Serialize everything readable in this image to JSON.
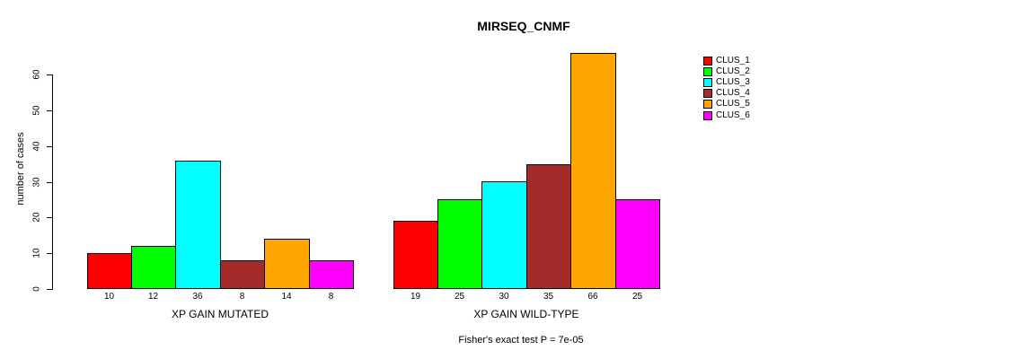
{
  "title": "MIRSEQ_CNMF",
  "chart_data": {
    "type": "bar",
    "title": "MIRSEQ_CNMF",
    "xlabel": "",
    "ylabel": "number of cases",
    "ylim": [
      0,
      60
    ],
    "yticks": [
      0,
      10,
      20,
      30,
      40,
      50,
      60
    ],
    "grid": false,
    "legend_position": "right",
    "background_color": "#ffffff",
    "bar_border_color": "#000000",
    "series_colors": [
      "#FF0000",
      "#00FF00",
      "#00FFFF",
      "#A52A2A",
      "#FFA500",
      "#FF00FF"
    ],
    "legend": [
      {
        "label": "CLUS_1",
        "color": "#FF0000"
      },
      {
        "label": "CLUS_2",
        "color": "#00FF00"
      },
      {
        "label": "CLUS_3",
        "color": "#00FFFF"
      },
      {
        "label": "CLUS_4",
        "color": "#A52A2A"
      },
      {
        "label": "CLUS_5",
        "color": "#FFA500"
      },
      {
        "label": "CLUS_6",
        "color": "#FF00FF"
      }
    ],
    "groups": [
      {
        "label": "XP GAIN MUTATED",
        "values": [
          10,
          12,
          36,
          8,
          14,
          8
        ],
        "bar_value_labels": [
          "10",
          "12",
          "36",
          "8",
          "14",
          "8"
        ]
      },
      {
        "label": "XP GAIN WILD-TYPE",
        "values": [
          19,
          25,
          30,
          35,
          66,
          25
        ],
        "bar_value_labels": [
          "19",
          "25",
          "30",
          "35",
          "66",
          "25"
        ]
      }
    ],
    "annotation": "Fisher's exact test P = 7e-05"
  }
}
